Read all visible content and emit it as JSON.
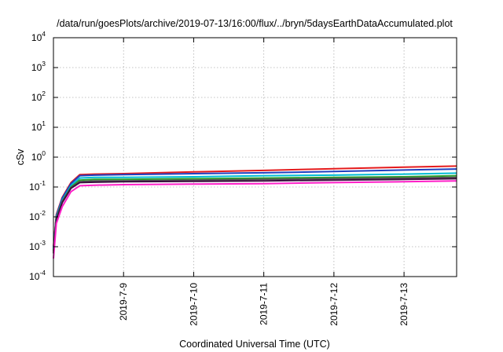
{
  "chart_data": {
    "type": "line",
    "title": "/data/run/goesPlots/archive/2019-07-13/16:00/flux/../bryn/5daysEarthDataAccumulated.plot",
    "xlabel": "Coordinated Universal Time (UTC)",
    "ylabel": "cSv",
    "yscale": "log",
    "ylim": [
      0.0001,
      10000
    ],
    "yticks": [
      {
        "base": "10",
        "exp": "-4",
        "value": 0.0001
      },
      {
        "base": "10",
        "exp": "-3",
        "value": 0.001
      },
      {
        "base": "10",
        "exp": "-2",
        "value": 0.01
      },
      {
        "base": "10",
        "exp": "-1",
        "value": 0.1
      },
      {
        "base": "10",
        "exp": "0",
        "value": 1
      },
      {
        "base": "10",
        "exp": "1",
        "value": 10
      },
      {
        "base": "10",
        "exp": "2",
        "value": 100
      },
      {
        "base": "10",
        "exp": "3",
        "value": 1000
      },
      {
        "base": "10",
        "exp": "4",
        "value": 10000
      }
    ],
    "xlim": [
      "2019-07-08 00:00",
      "2019-07-13 18:00"
    ],
    "xticks": [
      {
        "label": "2019-7-9",
        "value": "2019-07-09 00:00"
      },
      {
        "label": "2019-7-10",
        "value": "2019-07-10 00:00"
      },
      {
        "label": "2019-7-11",
        "value": "2019-07-11 00:00"
      },
      {
        "label": "2019-7-12",
        "value": "2019-07-12 00:00"
      },
      {
        "label": "2019-7-13",
        "value": "2019-07-13 00:00"
      }
    ],
    "x": [
      "2019-07-08 00:00",
      "2019-07-08 01:00",
      "2019-07-08 03:00",
      "2019-07-08 06:00",
      "2019-07-08 09:00",
      "2019-07-08 14:00",
      "2019-07-09 00:00",
      "2019-07-10 00:00",
      "2019-07-11 00:00",
      "2019-07-12 00:00",
      "2019-07-13 00:00",
      "2019-07-13 18:00"
    ],
    "grid": true,
    "legend": "none",
    "series": [
      {
        "color": "#e41a1c",
        "values": [
          0.001,
          0.012,
          0.045,
          0.14,
          0.26,
          0.27,
          0.28,
          0.32,
          0.36,
          0.41,
          0.46,
          0.5
        ]
      },
      {
        "color": "#1f3fbf",
        "values": [
          0.0009,
          0.011,
          0.042,
          0.13,
          0.24,
          0.25,
          0.26,
          0.28,
          0.3,
          0.33,
          0.37,
          0.4
        ]
      },
      {
        "color": "#00bcd4",
        "values": [
          0.0008,
          0.01,
          0.036,
          0.11,
          0.2,
          0.21,
          0.21,
          0.22,
          0.24,
          0.25,
          0.27,
          0.29
        ]
      },
      {
        "color": "#2ca02c",
        "values": [
          0.0007,
          0.009,
          0.033,
          0.1,
          0.17,
          0.18,
          0.18,
          0.19,
          0.2,
          0.21,
          0.22,
          0.24
        ]
      },
      {
        "color": "#555555",
        "values": [
          0.0007,
          0.009,
          0.032,
          0.095,
          0.15,
          0.16,
          0.16,
          0.17,
          0.18,
          0.19,
          0.2,
          0.21
        ]
      },
      {
        "color": "#3a0f3f",
        "values": [
          0.0006,
          0.008,
          0.03,
          0.09,
          0.14,
          0.145,
          0.15,
          0.155,
          0.16,
          0.17,
          0.18,
          0.19
        ]
      },
      {
        "color": "#ff1fc8",
        "values": [
          0.0004,
          0.006,
          0.022,
          0.07,
          0.11,
          0.115,
          0.12,
          0.125,
          0.13,
          0.14,
          0.15,
          0.16
        ]
      }
    ]
  }
}
